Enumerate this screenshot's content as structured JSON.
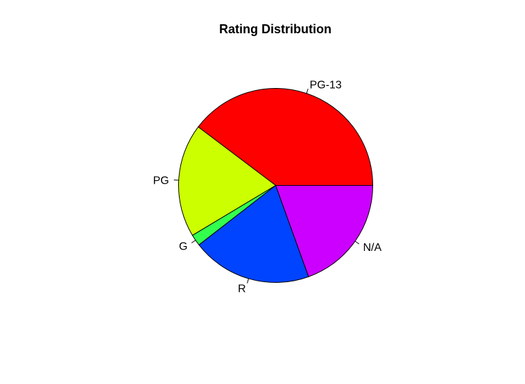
{
  "chart_data": {
    "type": "pie",
    "title": "Rating Distribution",
    "start_angle_deg": 0,
    "direction": "counterclockwise",
    "slices": [
      {
        "label": "PG-13",
        "value": 39.7,
        "color": "#FF0000"
      },
      {
        "label": "PG",
        "value": 18.9,
        "color": "#CCFF00"
      },
      {
        "label": "G",
        "value": 1.9,
        "color": "#33FF4D"
      },
      {
        "label": "R",
        "value": 20.0,
        "color": "#0044FF"
      },
      {
        "label": "N/A",
        "value": 19.5,
        "color": "#CC00FF"
      }
    ]
  }
}
